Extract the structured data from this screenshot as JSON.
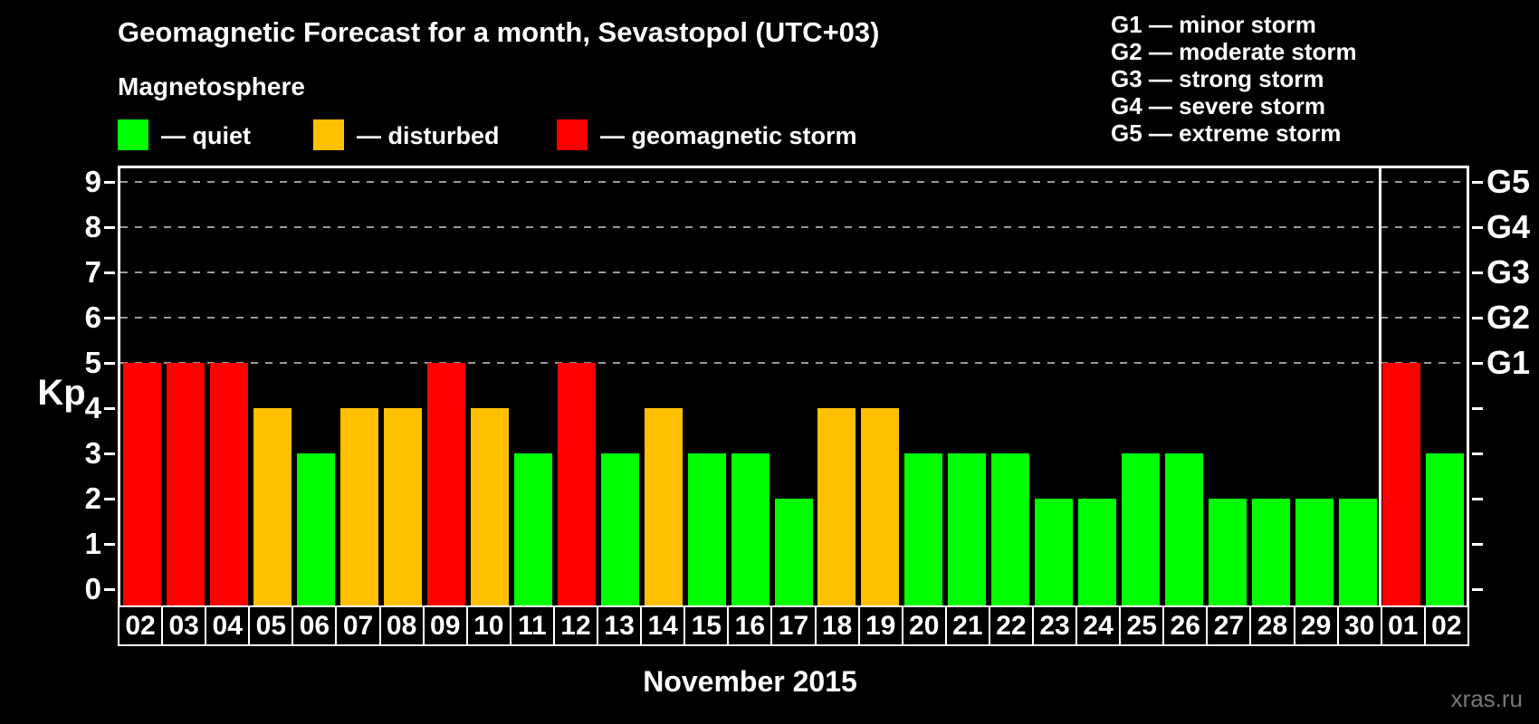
{
  "title": "Geomagnetic Forecast for a month, Sevastopol (UTC+03)",
  "subtitle": "Magnetosphere",
  "legend": [
    {
      "key": "quiet",
      "label": "— quiet"
    },
    {
      "key": "disturbed",
      "label": "— disturbed"
    },
    {
      "key": "storm",
      "label": "— geomagnetic storm"
    }
  ],
  "colors": {
    "quiet": "#00FF00",
    "disturbed": "#FFC000",
    "storm": "#FF0000",
    "grid": "#999999",
    "axis": "#FFFFFF",
    "watermark": "#777777"
  },
  "g_legend": [
    "G1 — minor storm",
    "G2 — moderate storm",
    "G3 — strong storm",
    "G4 — severe storm",
    "G5 — extreme storm"
  ],
  "axes": {
    "left_label": "Kp",
    "left_ticks": [
      0,
      1,
      2,
      3,
      4,
      5,
      6,
      7,
      8,
      9
    ],
    "right_labels": [
      {
        "kp": 5,
        "label": "G1"
      },
      {
        "kp": 6,
        "label": "G2"
      },
      {
        "kp": 7,
        "label": "G3"
      },
      {
        "kp": 8,
        "label": "G4"
      },
      {
        "kp": 9,
        "label": "G5"
      }
    ],
    "x_label": "November 2015"
  },
  "watermark": "xras.ru",
  "chart_data": {
    "type": "bar",
    "title": "Geomagnetic Forecast for a month, Sevastopol (UTC+03)",
    "xlabel": "November 2015",
    "ylabel": "Kp",
    "ylim": [
      0,
      9
    ],
    "grid": "dashed horizontal at Kp 5-9",
    "gridlines_kp": [
      5,
      6,
      7,
      8,
      9
    ],
    "legend_position": "top-left",
    "categories": [
      "02",
      "03",
      "04",
      "05",
      "06",
      "07",
      "08",
      "09",
      "10",
      "11",
      "12",
      "13",
      "14",
      "15",
      "16",
      "17",
      "18",
      "19",
      "20",
      "21",
      "22",
      "23",
      "24",
      "25",
      "26",
      "27",
      "28",
      "29",
      "30",
      "01",
      "02"
    ],
    "values": [
      5,
      5,
      5,
      4,
      3,
      4,
      4,
      5,
      4,
      3,
      5,
      3,
      4,
      3,
      3,
      2,
      4,
      4,
      3,
      3,
      3,
      2,
      2,
      3,
      3,
      2,
      2,
      2,
      2,
      5,
      3
    ],
    "statuses": [
      "storm",
      "storm",
      "storm",
      "disturbed",
      "quiet",
      "disturbed",
      "disturbed",
      "storm",
      "disturbed",
      "quiet",
      "storm",
      "quiet",
      "disturbed",
      "quiet",
      "quiet",
      "quiet",
      "disturbed",
      "disturbed",
      "quiet",
      "quiet",
      "quiet",
      "quiet",
      "quiet",
      "quiet",
      "quiet",
      "quiet",
      "quiet",
      "quiet",
      "quiet",
      "storm",
      "quiet"
    ],
    "separator_after_index": 28
  }
}
